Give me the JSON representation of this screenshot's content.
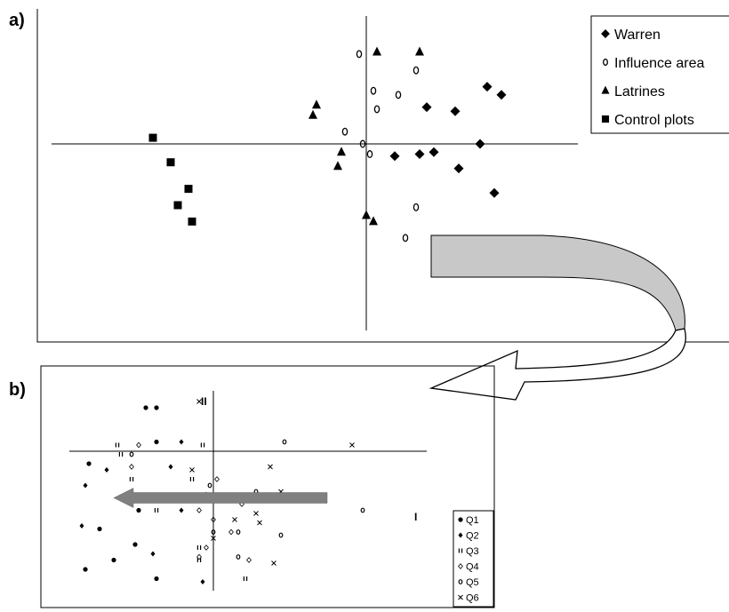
{
  "panels": {
    "a_label": "a)",
    "b_label": "b)"
  },
  "chart_data": [
    {
      "panel": "a",
      "type": "scatter",
      "title": "",
      "xlabel": "",
      "ylabel": "",
      "grid": false,
      "legend": "right",
      "xlim": [
        -4,
        4
      ],
      "ylim": [
        -4,
        3
      ],
      "series": [
        {
          "name": "Warren",
          "marker": "diamond",
          "points": [
            [
              0.85,
              0.9
            ],
            [
              1.25,
              0.8
            ],
            [
              1.7,
              1.4
            ],
            [
              1.9,
              1.2
            ],
            [
              0.95,
              -0.2
            ],
            [
              0.75,
              -0.25
            ],
            [
              0.4,
              -0.3
            ],
            [
              1.6,
              0
            ],
            [
              1.3,
              -0.6
            ],
            [
              1.8,
              -1.2
            ]
          ]
        },
        {
          "name": "Influence area",
          "marker": "open-circle",
          "points": [
            [
              -0.1,
              2.2
            ],
            [
              0.7,
              1.8
            ],
            [
              0.1,
              1.3
            ],
            [
              0.45,
              1.2
            ],
            [
              0.15,
              0.85
            ],
            [
              -0.3,
              0.3
            ],
            [
              -0.05,
              0.0
            ],
            [
              0.05,
              -0.25
            ],
            [
              0.7,
              -1.55
            ],
            [
              0.55,
              -2.3
            ]
          ]
        },
        {
          "name": "Latrines",
          "marker": "triangle",
          "points": [
            [
              0.15,
              2.25
            ],
            [
              0.75,
              2.25
            ],
            [
              -0.7,
              0.95
            ],
            [
              -0.75,
              0.7
            ],
            [
              -0.35,
              -0.2
            ],
            [
              -0.4,
              -0.55
            ],
            [
              0.0,
              -1.75
            ],
            [
              0.1,
              -1.9
            ]
          ]
        },
        {
          "name": "Control plots",
          "marker": "square",
          "points": [
            [
              -3.0,
              0.15
            ],
            [
              -2.75,
              -0.45
            ],
            [
              -2.5,
              -1.1
            ],
            [
              -2.65,
              -1.5
            ],
            [
              -2.45,
              -1.9
            ]
          ]
        }
      ]
    },
    {
      "panel": "b",
      "type": "scatter",
      "title": "",
      "xlabel": "I",
      "ylabel": "II",
      "grid": false,
      "legend": "bottom-right",
      "xlim": [
        -2,
        3
      ],
      "ylim": [
        -2.2,
        1.0
      ],
      "arrow": {
        "from": [
          1.6,
          -0.75
        ],
        "to": [
          -1.4,
          -0.75
        ]
      },
      "series": [
        {
          "name": "Q1",
          "marker": "dot",
          "points": [
            [
              -0.95,
              0.7
            ],
            [
              -0.8,
              0.7
            ],
            [
              -0.8,
              0.15
            ],
            [
              -1.75,
              -0.2
            ],
            [
              -1.6,
              -1.25
            ],
            [
              -1.8,
              -1.9
            ],
            [
              -1.4,
              -1.75
            ],
            [
              -1.1,
              -1.5
            ],
            [
              -0.8,
              -2.05
            ],
            [
              -1.05,
              -0.95
            ]
          ]
        },
        {
          "name": "Q2",
          "marker": "small-diamond",
          "points": [
            [
              -0.45,
              0.15
            ],
            [
              -1.5,
              -0.3
            ],
            [
              -1.8,
              -0.55
            ],
            [
              -1.85,
              -1.2
            ],
            [
              -0.85,
              -1.65
            ],
            [
              -0.15,
              -2.1
            ],
            [
              -0.45,
              -0.95
            ],
            [
              -0.6,
              -0.25
            ]
          ]
        },
        {
          "name": "Q3",
          "marker": "double-bar",
          "points": [
            [
              -1.35,
              0.1
            ],
            [
              -1.3,
              -0.05
            ],
            [
              -0.15,
              0.1
            ],
            [
              -1.15,
              -0.45
            ],
            [
              -0.3,
              -0.45
            ],
            [
              -1.25,
              -0.75
            ],
            [
              -0.8,
              -0.95
            ],
            [
              -0.25,
              -0.75
            ],
            [
              -0.2,
              -1.55
            ],
            [
              0.45,
              -2.05
            ],
            [
              -0.2,
              -1.75
            ]
          ]
        },
        {
          "name": "Q4",
          "marker": "open-diamond",
          "points": [
            [
              -1.05,
              0.1
            ],
            [
              -1.15,
              -0.25
            ],
            [
              0.05,
              -0.45
            ],
            [
              -0.1,
              -0.7
            ],
            [
              0.4,
              -0.85
            ],
            [
              -0.2,
              -0.95
            ],
            [
              0.25,
              -1.3
            ],
            [
              -0.1,
              -1.55
            ],
            [
              -0.2,
              -1.7
            ],
            [
              0.5,
              -1.75
            ],
            [
              0.0,
              -1.1
            ]
          ]
        },
        {
          "name": "Q5",
          "marker": "small-circle",
          "points": [
            [
              1.0,
              0.15
            ],
            [
              -1.15,
              -0.05
            ],
            [
              -0.05,
              -0.55
            ],
            [
              0.6,
              -0.65
            ],
            [
              0.0,
              -1.3
            ],
            [
              0.35,
              -1.3
            ],
            [
              0.35,
              -1.7
            ],
            [
              0.95,
              -1.35
            ],
            [
              2.1,
              -0.95
            ]
          ]
        },
        {
          "name": "Q6",
          "marker": "x",
          "points": [
            [
              -0.2,
              0.8
            ],
            [
              1.95,
              0.1
            ],
            [
              -0.3,
              -0.3
            ],
            [
              0.8,
              -0.25
            ],
            [
              0.95,
              -0.65
            ],
            [
              0.3,
              -1.1
            ],
            [
              0.65,
              -1.15
            ],
            [
              0.0,
              -1.4
            ],
            [
              0.85,
              -1.8
            ],
            [
              0.6,
              -1.0
            ]
          ]
        }
      ]
    }
  ],
  "connector": {
    "fill": "#c8c8c8",
    "stroke": "#000000"
  },
  "colors": {
    "marker": "#000000",
    "arrow": "#808080"
  }
}
